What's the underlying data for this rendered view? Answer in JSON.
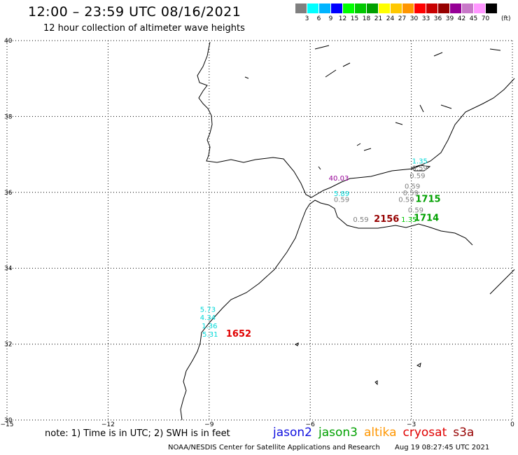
{
  "header": {
    "title": "12:00 – 23:59 UTC 08/16/2021",
    "subtitle": "12 hour collection of altimeter wave heights"
  },
  "colorbar": {
    "colors": [
      "#7f7f7f",
      "#00ffff",
      "#00b4ff",
      "#0000ff",
      "#00ff00",
      "#00c800",
      "#00a000",
      "#ffff00",
      "#ffc800",
      "#ff9600",
      "#ff0000",
      "#c80000",
      "#960000",
      "#960096",
      "#c878c8",
      "#ff96ff",
      "#000000"
    ],
    "labels": [
      "3",
      "6",
      "9",
      "12",
      "15",
      "18",
      "21",
      "24",
      "27",
      "30",
      "33",
      "36",
      "39",
      "42",
      "45",
      "70"
    ],
    "unit": "(ft)"
  },
  "chart_data": {
    "type": "scatter",
    "title": "12:00 – 23:59 UTC 08/16/2021",
    "subtitle": "12 hour collection of altimeter wave heights",
    "xlabel": "",
    "ylabel": "",
    "xlim": [
      -15,
      0
    ],
    "ylim": [
      30,
      40
    ],
    "x_ticks": [
      -15,
      -12,
      -9,
      -6,
      -3,
      0
    ],
    "x_tick_labels": [
      "−15",
      "−12",
      "−9",
      "−6",
      "−3",
      "0"
    ],
    "y_ticks": [
      30,
      32,
      34,
      36,
      38,
      40
    ],
    "y_tick_labels": [
      "30",
      "32",
      "34",
      "36",
      "38",
      "40"
    ],
    "grid": true,
    "points": [
      {
        "lon": -2.98,
        "lat": 36.76,
        "label": "1.35",
        "color": "#00d8d8"
      },
      {
        "lon": -2.98,
        "lat": 36.58,
        "label": "0.59",
        "color": "#7f7f7f"
      },
      {
        "lon": -3.05,
        "lat": 36.37,
        "label": "0.59",
        "color": "#7f7f7f"
      },
      {
        "lon": -3.2,
        "lat": 36.1,
        "label": "0.59",
        "color": "#7f7f7f"
      },
      {
        "lon": -3.25,
        "lat": 35.92,
        "label": "0.59",
        "color": "#7f7f7f"
      },
      {
        "lon": -3.38,
        "lat": 35.75,
        "label": "0.59",
        "color": "#7f7f7f"
      },
      {
        "lon": -3.1,
        "lat": 35.47,
        "label": "0.59",
        "color": "#7f7f7f"
      },
      {
        "lon": -3.3,
        "lat": 35.22,
        "label": "1.35",
        "color": "#00c800"
      },
      {
        "lon": -5.45,
        "lat": 36.31,
        "label": "40.03",
        "color": "#960096"
      },
      {
        "lon": -5.3,
        "lat": 35.9,
        "label": "5.89",
        "color": "#00d8d8"
      },
      {
        "lon": -5.3,
        "lat": 35.75,
        "label": "0.59",
        "color": "#7f7f7f"
      },
      {
        "lon": -4.73,
        "lat": 35.22,
        "label": "0.59",
        "color": "#7f7f7f"
      },
      {
        "lon": -9.27,
        "lat": 32.85,
        "label": "5.73",
        "color": "#00d8d8"
      },
      {
        "lon": -9.27,
        "lat": 32.64,
        "label": "4.34",
        "color": "#00d8d8"
      },
      {
        "lon": -9.22,
        "lat": 32.42,
        "label": "1.36",
        "color": "#00d8d8"
      },
      {
        "lon": -9.2,
        "lat": 32.2,
        "label": "5.31",
        "color": "#00d8d8"
      }
    ],
    "pass_times": [
      {
        "lon": -2.88,
        "lat": 35.75,
        "label": "1715",
        "color": "#00a000"
      },
      {
        "lon": -2.93,
        "lat": 35.25,
        "label": "1714",
        "color": "#00a000"
      },
      {
        "lon": -4.11,
        "lat": 35.22,
        "label": "2156",
        "color": "#960000"
      },
      {
        "lon": -8.5,
        "lat": 32.2,
        "label": "1652",
        "color": "#e00000"
      }
    ]
  },
  "note": "note: 1) Time is in UTC; 2) SWH is in feet",
  "legend": [
    {
      "name": "jason2",
      "color": "#1010e0"
    },
    {
      "name": "jason3",
      "color": "#00a000"
    },
    {
      "name": "altika",
      "color": "#ff9600"
    },
    {
      "name": "cryosat",
      "color": "#e00000"
    },
    {
      "name": "s3a",
      "color": "#960000"
    }
  ],
  "footer": {
    "credit": "NOAA/NESDIS Center for Satellite Applications and Research",
    "timestamp": "Aug 19 08:27:45 UTC 2021"
  }
}
